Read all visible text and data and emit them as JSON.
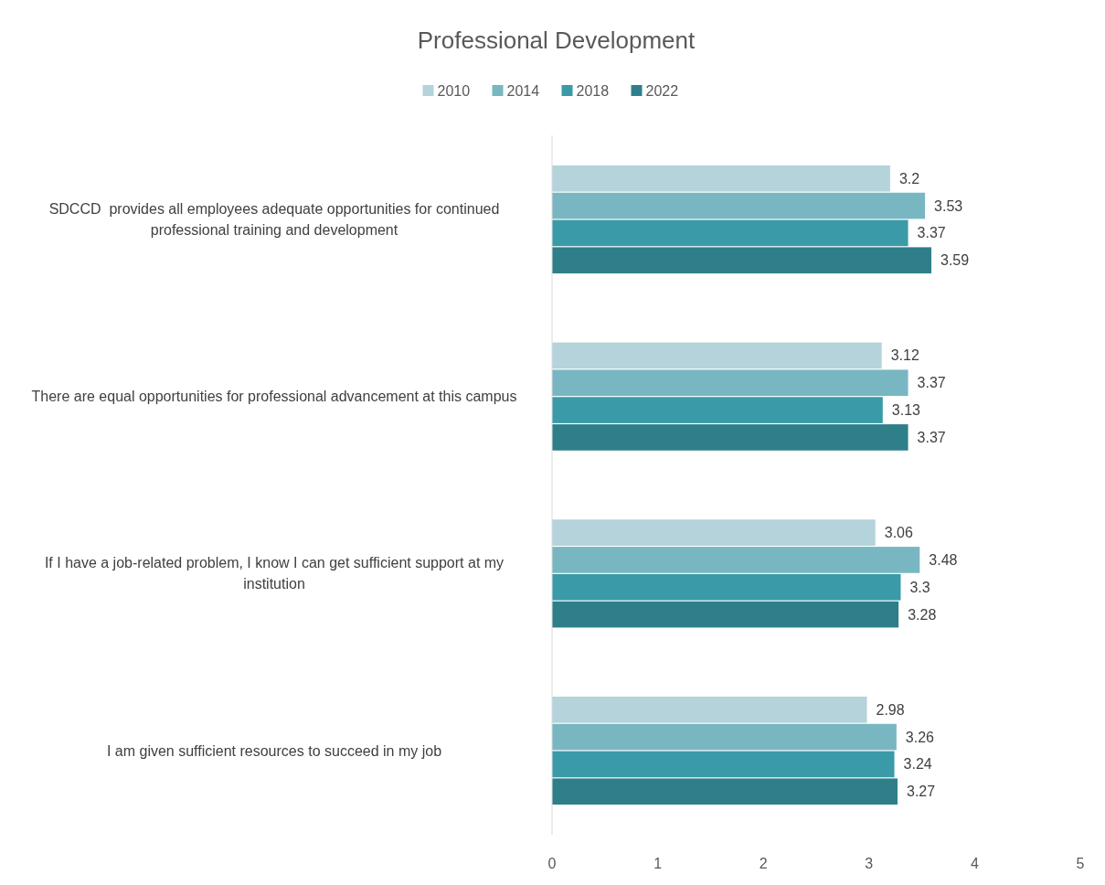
{
  "chart_data": {
    "type": "bar",
    "title": "Professional Development",
    "orientation": "horizontal",
    "categories": [
      "SDCCD  provides all employees adequate opportunities for continued professional training and development",
      "There are equal opportunities for professional advancement at this campus",
      "If I have a job-related problem, I know I can get sufficient support at my institution",
      "I am given sufficient resources to succeed in my job"
    ],
    "series": [
      {
        "name": "2010",
        "color": "#b4d3da",
        "values": [
          3.2,
          3.12,
          3.06,
          2.98
        ]
      },
      {
        "name": "2014",
        "color": "#78b7c2",
        "values": [
          3.53,
          3.37,
          3.48,
          3.26
        ]
      },
      {
        "name": "2018",
        "color": "#3a9aa8",
        "values": [
          3.37,
          3.13,
          3.3,
          3.24
        ]
      },
      {
        "name": "2022",
        "color": "#2e7f8a",
        "values": [
          3.59,
          3.37,
          3.28,
          3.27
        ]
      }
    ],
    "xlim": [
      0,
      5
    ],
    "xticks": [
      0,
      1,
      2,
      3,
      4,
      5
    ],
    "data_labels": true,
    "legend": "top"
  }
}
